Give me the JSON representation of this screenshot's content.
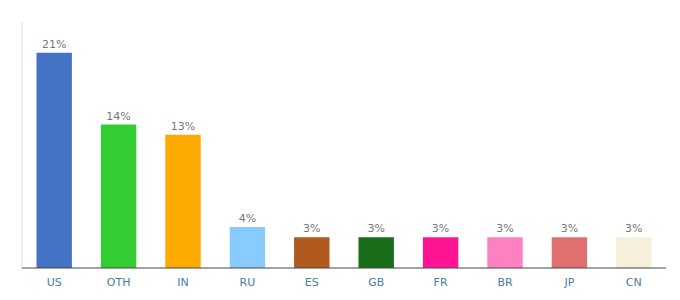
{
  "chart_data": {
    "type": "bar",
    "categories": [
      "US",
      "OTH",
      "IN",
      "RU",
      "ES",
      "GB",
      "FR",
      "BR",
      "JP",
      "CN"
    ],
    "values": [
      21,
      14,
      13,
      4,
      3,
      3,
      3,
      3,
      3,
      3
    ],
    "value_labels": [
      "21%",
      "14%",
      "13%",
      "4%",
      "3%",
      "3%",
      "3%",
      "3%",
      "3%",
      "3%"
    ],
    "colors": [
      "#4472c4",
      "#33cc33",
      "#ffaa00",
      "#88ccff",
      "#b05a20",
      "#1a6e1a",
      "#ff1493",
      "#ff80c0",
      "#e07070",
      "#f5f0dc"
    ],
    "ylim": [
      0,
      24
    ],
    "data_labels": true,
    "tick_labels": "x",
    "grid": false
  }
}
